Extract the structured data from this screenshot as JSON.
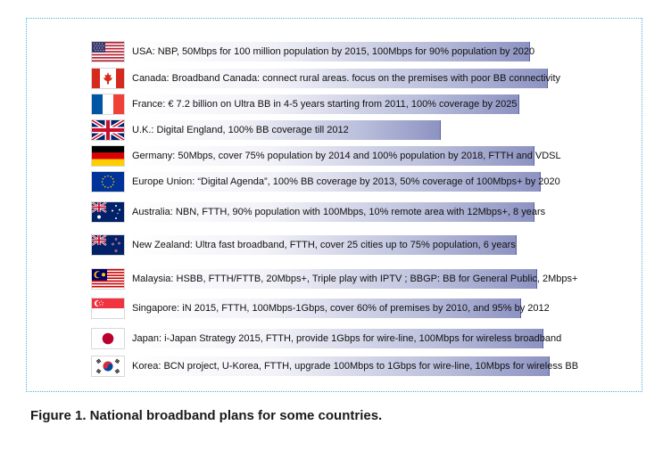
{
  "plans": [
    {
      "icon": "usa-flag-icon",
      "text": "USA: NBP, 50Mbps for 100 million population by 2015, 100Mbps for 90% population by 2020"
    },
    {
      "icon": "canada-flag-icon",
      "text": "Canada: Broadband Canada: connect rural areas. focus on the premises with poor BB connectivity"
    },
    {
      "icon": "france-flag-icon",
      "text": "France: € 7.2 billion on Ultra BB in 4-5 years starting from 2011, 100% coverage by 2025"
    },
    {
      "icon": "uk-flag-icon",
      "text": "U.K.: Digital England, 100% BB coverage till 2012"
    },
    {
      "icon": "germany-flag-icon",
      "text": "Germany: 50Mbps, cover 75% population  by 2014 and 100% population by 2018, FTTH and VDSL"
    },
    {
      "icon": "eu-flag-icon",
      "text": "Europe Union: “Digital Agenda”, 100% BB coverage by 2013, 50% coverage of 100Mbps+ by 2020"
    },
    {
      "icon": "australia-flag-icon",
      "text": "Australia: NBN, FTTH, 90% population with 100Mbps, 10% remote area with 12Mbps+, 8 years"
    },
    {
      "icon": "new-zealand-flag-icon",
      "text": "New Zealand: Ultra fast broadband, FTTH, cover 25 cities up to 75% population, 6 years"
    },
    {
      "icon": "malaysia-flag-icon",
      "text": "Malaysia: HSBB, FTTH/FTTB, 20Mbps+, Triple play with IPTV ; BBGP: BB for General Public, 2Mbps+"
    },
    {
      "icon": "singapore-flag-icon",
      "text": "Singapore: iN 2015, FTTH, 100Mbps-1Gbps, cover 60% of premises by 2010, and 95% by 2012"
    },
    {
      "icon": "japan-flag-icon",
      "text": "Japan: i-Japan Strategy 2015, FTTH, provide 1Gbps for wire-line, 100Mbps for wireless broadband"
    },
    {
      "icon": "korea-flag-icon",
      "text": "Korea: BCN project, U-Korea, FTTH, upgrade 100Mbps to 1Gbps for wire-line, 10Mbps for wireless BB"
    }
  ],
  "caption": "Figure 1. National broadband plans for some countries."
}
